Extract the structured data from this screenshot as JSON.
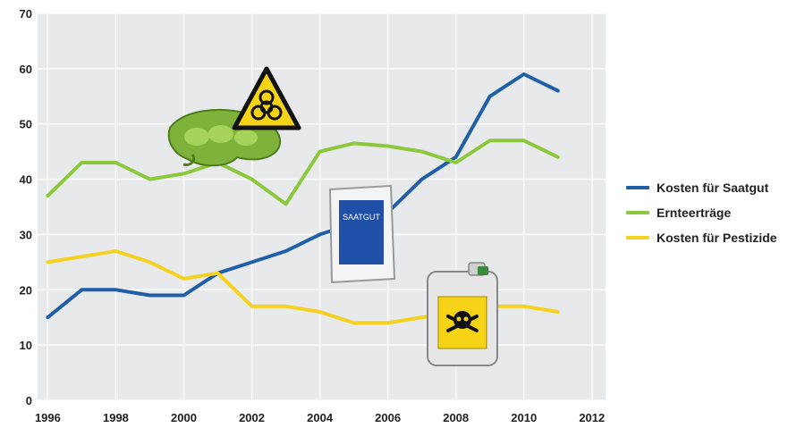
{
  "chart_data": {
    "type": "line",
    "title": "",
    "xlabel": "",
    "ylabel": "",
    "x": [
      1996,
      1997,
      1998,
      1999,
      2000,
      2001,
      2002,
      2003,
      2004,
      2005,
      2006,
      2007,
      2008,
      2009,
      2010,
      2011
    ],
    "xlim": [
      1995.7,
      2012.4
    ],
    "ylim": [
      0,
      70
    ],
    "x_ticks": [
      "1996",
      "1998",
      "2000",
      "2002",
      "2004",
      "2006",
      "2008",
      "2010",
      "2012"
    ],
    "y_ticks": [
      "0",
      "10",
      "20",
      "30",
      "40",
      "50",
      "60",
      "70"
    ],
    "grid": true,
    "legend_position": "right",
    "series": [
      {
        "name": "Kosten für Saatgut",
        "color": "#1f5fa8",
        "values": [
          15,
          20,
          20,
          19,
          19,
          23,
          25,
          27,
          30,
          32,
          34,
          40,
          44,
          55,
          59,
          56
        ]
      },
      {
        "name": "Ernteerträge",
        "color": "#8cc83c",
        "values": [
          37,
          43,
          43,
          40,
          41,
          43,
          40,
          35.5,
          45,
          46.5,
          46,
          45,
          43,
          47,
          47,
          44
        ]
      },
      {
        "name": "Kosten für Pestizide",
        "color": "#f4d21f",
        "values": [
          25,
          26,
          27,
          25,
          22,
          23,
          17,
          17,
          16,
          14,
          14,
          15,
          16,
          17,
          17,
          16
        ]
      }
    ]
  },
  "illustrations": {
    "biohazard_icon": "biohazard-warning-icon",
    "seed_pod_icon": "soybean-pod-icon",
    "seed_bag_label": "SAATGUT",
    "canister_icon": "poison-canister-icon",
    "skull_icon": "skull-crossbones-icon"
  },
  "colors": {
    "plot_background": "#e8e9ea",
    "gridline": "#ffffff"
  }
}
